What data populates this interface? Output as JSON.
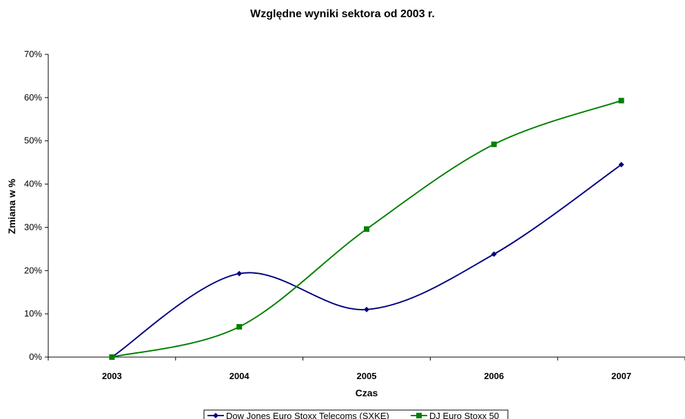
{
  "chart_data": {
    "type": "line",
    "title": "Względne wyniki sektora od 2003 r.",
    "xlabel": "Czas",
    "ylabel": "Zmiana w %",
    "categories": [
      "2003",
      "2004",
      "2005",
      "2006",
      "2007"
    ],
    "ylim": [
      0,
      70
    ],
    "yticks": [
      "0%",
      "10%",
      "20%",
      "30%",
      "40%",
      "50%",
      "60%",
      "70%"
    ],
    "grid": false,
    "smooth": true,
    "legend_position": "bottom",
    "series": [
      {
        "name": "Dow Jones Euro Stoxx Telecoms (SXKE)",
        "values": [
          0,
          19.3,
          11,
          23.8,
          44.5
        ],
        "color": "#000080",
        "marker": "diamond"
      },
      {
        "name": "DJ Euro Stoxx 50",
        "values": [
          0,
          7,
          29.6,
          49.2,
          59.3
        ],
        "color": "#008000",
        "marker": "square"
      }
    ]
  }
}
